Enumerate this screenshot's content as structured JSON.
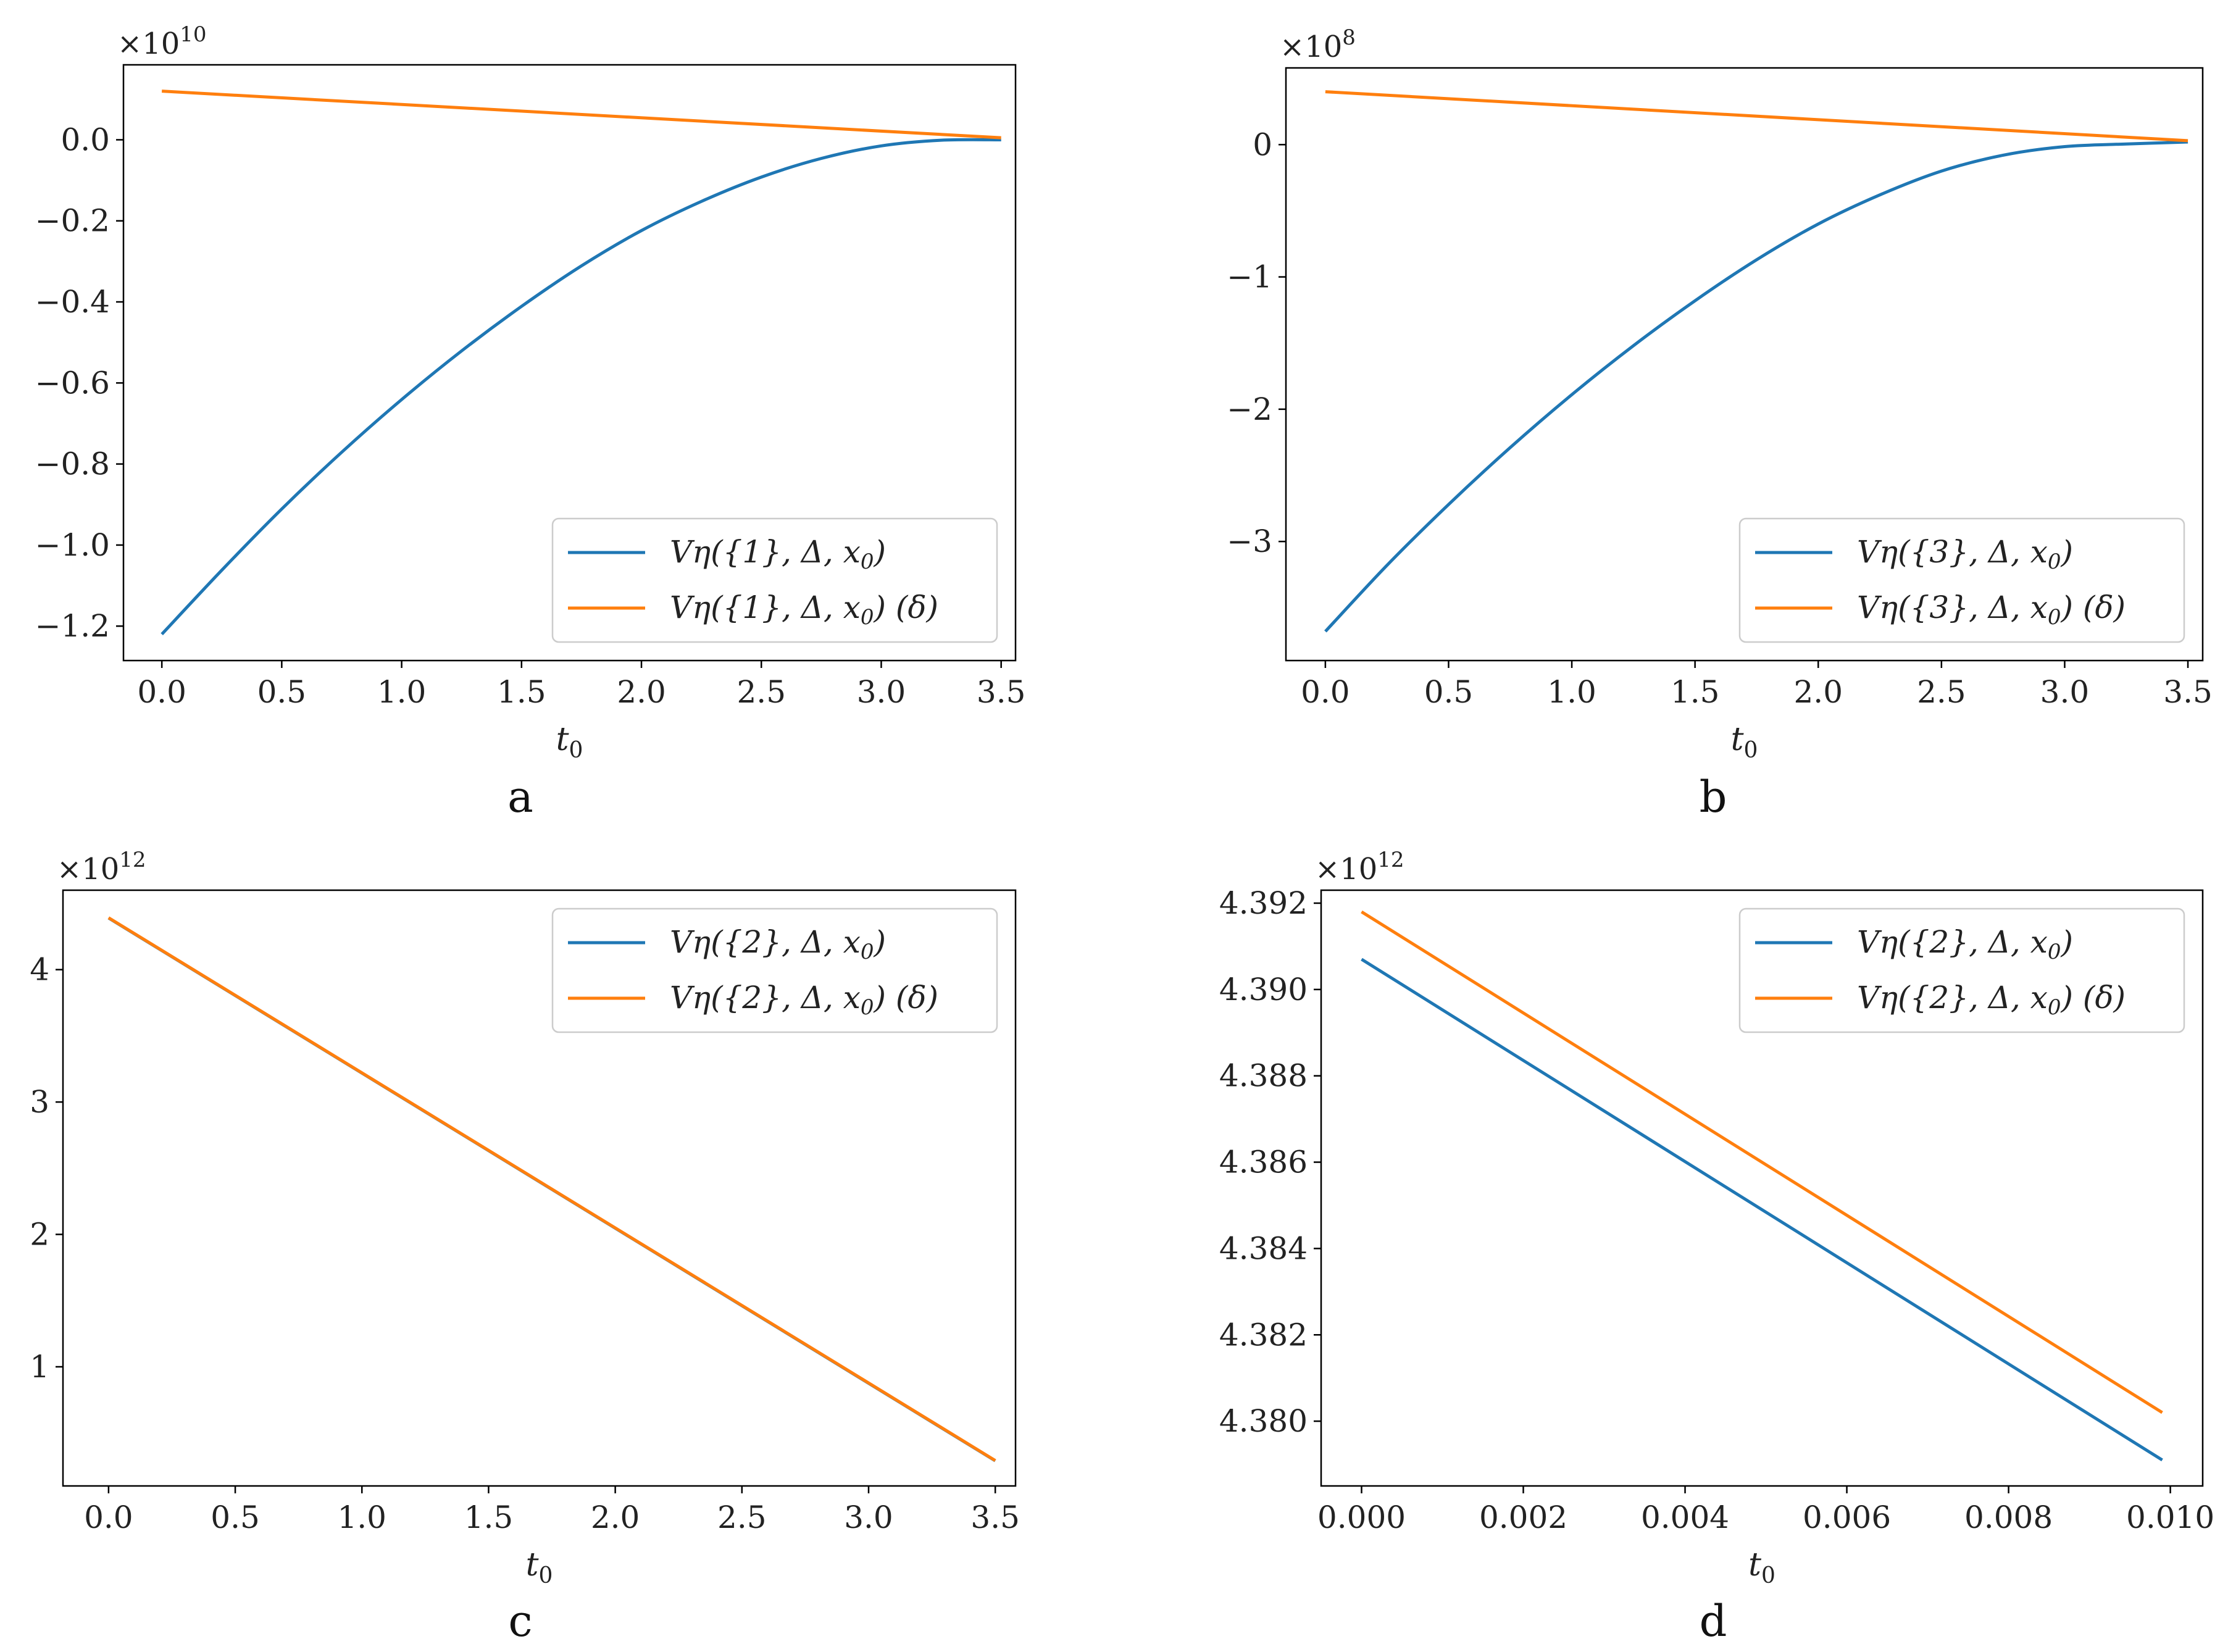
{
  "chart_data": [
    {
      "type": "line",
      "panel_label": "a",
      "xlabel": "t",
      "xlabel_sub": "0",
      "multiplier": "×10",
      "multiplier_exp": "10",
      "xlim": [
        -0.16,
        3.56
      ],
      "ylim": [
        -1.285,
        0.185
      ],
      "xticks": [
        "0.0",
        "0.5",
        "1.0",
        "1.5",
        "2.0",
        "2.5",
        "3.0",
        "3.5"
      ],
      "yticks": [
        "0.0",
        "−0.2",
        "−0.4",
        "−0.6",
        "−0.8",
        "−1.0",
        "−1.2"
      ],
      "ytick_values": [
        0.0,
        -0.2,
        -0.4,
        -0.6,
        -0.8,
        -1.0,
        -1.2
      ],
      "xtick_values": [
        0.0,
        0.5,
        1.0,
        1.5,
        2.0,
        2.5,
        3.0,
        3.5
      ],
      "legend_position": "lower-right",
      "series": [
        {
          "name": "V^η({1},Δ,x₀)",
          "label_main": "Vη({1}, Δ, x",
          "label_sub": "0",
          "label_tail": ")",
          "color": "#1f77b4",
          "x": [
            0.0,
            0.25,
            0.5,
            0.75,
            1.0,
            1.25,
            1.5,
            1.75,
            2.0,
            2.25,
            2.5,
            2.75,
            3.0,
            3.25,
            3.5
          ],
          "y": [
            -1.22,
            -1.062,
            -0.911,
            -0.771,
            -0.641,
            -0.521,
            -0.411,
            -0.311,
            -0.224,
            -0.152,
            -0.092,
            -0.046,
            -0.015,
            -0.001,
            0.0
          ]
        },
        {
          "name": "V^η({1},Δ,x₀) (δ)",
          "label_main": "Vη({1}, Δ, x",
          "label_sub": "0",
          "label_tail": ")   (δ)",
          "color": "#ff7f0e",
          "x": [
            0.0,
            3.5
          ],
          "y": [
            0.12,
            0.005
          ]
        }
      ]
    },
    {
      "type": "line",
      "panel_label": "b",
      "xlabel": "t",
      "xlabel_sub": "0",
      "multiplier": "×10",
      "multiplier_exp": "8",
      "xlim": [
        -0.16,
        3.56
      ],
      "ylim": [
        -3.9,
        0.58
      ],
      "xticks": [
        "0.0",
        "0.5",
        "1.0",
        "1.5",
        "2.0",
        "2.5",
        "3.0",
        "3.5"
      ],
      "yticks": [
        "0",
        "−1",
        "−2",
        "−3"
      ],
      "ytick_values": [
        0,
        -1,
        -2,
        -3
      ],
      "xtick_values": [
        0.0,
        0.5,
        1.0,
        1.5,
        2.0,
        2.5,
        3.0,
        3.5
      ],
      "legend_position": "lower-right",
      "series": [
        {
          "name": "V^η({3},Δ,x₀)",
          "label_main": "Vη({3}, Δ, x",
          "label_sub": "0",
          "label_tail": ")",
          "color": "#1f77b4",
          "x": [
            0.0,
            0.25,
            0.5,
            0.75,
            1.0,
            1.25,
            1.5,
            1.75,
            2.0,
            2.25,
            2.5,
            2.75,
            3.0,
            3.25,
            3.5
          ],
          "y": [
            -3.68,
            -3.18,
            -2.72,
            -2.29,
            -1.89,
            -1.52,
            -1.18,
            -0.87,
            -0.6,
            -0.38,
            -0.2,
            -0.08,
            -0.015,
            0.005,
            0.02
          ]
        },
        {
          "name": "V^η({3},Δ,x₀) (δ)",
          "label_main": "Vη({3}, Δ, x",
          "label_sub": "0",
          "label_tail": ")   (δ)",
          "color": "#ff7f0e",
          "x": [
            0.0,
            3.5
          ],
          "y": [
            0.4,
            0.03
          ]
        }
      ]
    },
    {
      "type": "line",
      "panel_label": "c",
      "xlabel": "t",
      "xlabel_sub": "0",
      "multiplier": "×10",
      "multiplier_exp": "12",
      "xlim": [
        -0.18,
        3.58
      ],
      "ylim": [
        0.1,
        4.6
      ],
      "xticks": [
        "0.0",
        "0.5",
        "1.0",
        "1.5",
        "2.0",
        "2.5",
        "3.0",
        "3.5"
      ],
      "yticks": [
        "4",
        "3",
        "2",
        "1"
      ],
      "ytick_values": [
        4,
        3,
        2,
        1
      ],
      "xtick_values": [
        0.0,
        0.5,
        1.0,
        1.5,
        2.0,
        2.5,
        3.0,
        3.5
      ],
      "legend_position": "upper-right",
      "series": [
        {
          "name": "V^η({2},Δ,x₀)",
          "label_main": "Vη({2}, Δ, x",
          "label_sub": "0",
          "label_tail": ")",
          "color": "#1f77b4",
          "x": [
            0.0,
            3.5
          ],
          "y": [
            4.39,
            0.29
          ]
        },
        {
          "name": "V^η({2},Δ,x₀) (δ)",
          "label_main": "Vη({2}, Δ, x",
          "label_sub": "0",
          "label_tail": ")   (δ)",
          "color": "#ff7f0e",
          "x": [
            0.0,
            3.5
          ],
          "y": [
            4.392,
            0.292
          ]
        }
      ]
    },
    {
      "type": "line",
      "panel_label": "d",
      "xlabel": "t",
      "xlabel_sub": "0",
      "multiplier": "×10",
      "multiplier_exp": "12",
      "xlim": [
        -0.0005,
        0.0104
      ],
      "ylim": [
        4.3785,
        4.3923
      ],
      "xticks": [
        "0.000",
        "0.002",
        "0.004",
        "0.006",
        "0.008",
        "0.010"
      ],
      "yticks": [
        "4.392",
        "4.390",
        "4.388",
        "4.386",
        "4.384",
        "4.382",
        "4.380"
      ],
      "ytick_values": [
        4.392,
        4.39,
        4.388,
        4.386,
        4.384,
        4.382,
        4.38
      ],
      "xtick_values": [
        0.0,
        0.002,
        0.004,
        0.006,
        0.008,
        0.01
      ],
      "legend_position": "upper-right",
      "series": [
        {
          "name": "V^η({2},Δ,x₀)",
          "label_main": "Vη({2}, Δ, x",
          "label_sub": "0",
          "label_tail": ")",
          "color": "#1f77b4",
          "x": [
            0.0,
            0.0099
          ],
          "y": [
            4.3907,
            4.3791
          ]
        },
        {
          "name": "V^η({2},Δ,x₀) (δ)",
          "label_main": "Vη({2}, Δ, x",
          "label_sub": "0",
          "label_tail": ")   (δ)",
          "color": "#ff7f0e",
          "x": [
            0.0,
            0.0099
          ],
          "y": [
            4.3918,
            4.3802
          ]
        }
      ]
    }
  ]
}
